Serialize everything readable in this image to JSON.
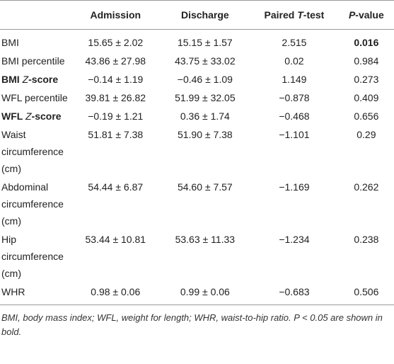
{
  "table": {
    "header": [
      "Admission",
      "Discharge",
      [
        "Paired ",
        {
          "text": "T",
          "italic": true
        },
        "-test"
      ],
      [
        {
          "text": "P",
          "italic": true
        },
        "-value"
      ]
    ],
    "rows": [
      [
        "BMI",
        "15.65 ± 2.02",
        "15.15 ± 1.57",
        "2.515",
        {
          "text": "0.016",
          "bold": true
        }
      ],
      [
        "BMI percentile",
        "43.86 ± 27.98",
        "43.75 ± 33.02",
        "0.02",
        "0.984"
      ],
      [
        [
          "BMI ",
          {
            "text": "Z",
            "italic": true
          },
          "-score"
        ],
        "−0.14 ± 1.19",
        "−0.46 ± 1.09",
        "1.149",
        "0.273"
      ],
      [
        "WFL percentile",
        "39.81 ± 26.82",
        "51.99 ± 32.05",
        "−0.878",
        "0.409"
      ],
      [
        [
          "WFL ",
          {
            "text": "Z",
            "italic": true
          },
          "-score"
        ],
        "−0.19 ± 1.21",
        "0.36 ± 1.74",
        "−0.468",
        "0.656"
      ],
      [
        "Waist circumference (cm)",
        "51.81 ± 7.38",
        "51.90 ± 7.38",
        "−1.101",
        "0.29"
      ],
      [
        "Abdominal circumference (cm)",
        "54.44 ± 6.87",
        "54.60 ± 7.57",
        "−1.169",
        "0.262"
      ],
      [
        "Hip circumference (cm)",
        "53.44 ± 10.81",
        "53.63 ± 11.33",
        "−1.234",
        "0.238"
      ],
      [
        "WHR",
        "0.98 ± 0.06",
        "0.99 ± 0.06",
        "−0.683",
        "0.506"
      ]
    ],
    "footnote": "BMI, body mass index; WFL, weight for length; WHR, waist-to-hip ratio. P < 0.05 are shown in bold."
  }
}
